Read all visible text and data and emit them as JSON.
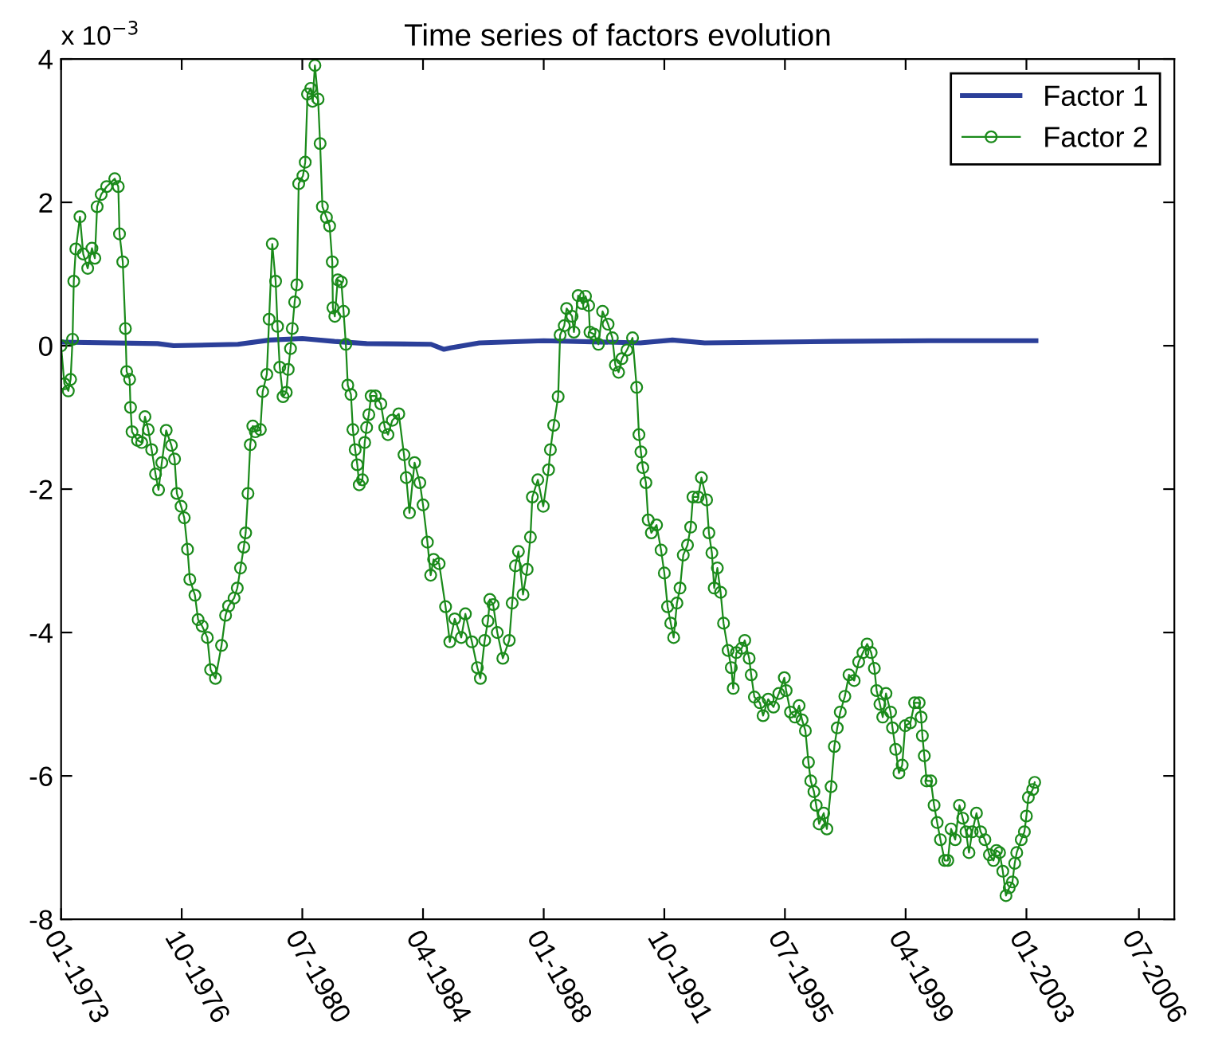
{
  "chart_data": {
    "type": "line",
    "title": "Time series of factors evolution",
    "annotations": [
      "x 10$^{−3}$"
    ],
    "xlim": [
      "1973-01-01",
      "2007-08-07"
    ],
    "ylim": [
      -8,
      4
    ],
    "xticks": [
      {
        "value": "1973-01",
        "label": "01-1973"
      },
      {
        "value": "1976-10",
        "label": "10-1976"
      },
      {
        "value": "1980-07",
        "label": "07-1980"
      },
      {
        "value": "1984-04",
        "label": "04-1984"
      },
      {
        "value": "1988-01",
        "label": "01-1988"
      },
      {
        "value": "1991-10",
        "label": "10-1991"
      },
      {
        "value": "1995-07",
        "label": "07-1995"
      },
      {
        "value": "1999-04",
        "label": "04-1999"
      },
      {
        "value": "2003-01",
        "label": "01-2003"
      },
      {
        "value": "2006-07",
        "label": "07-2006"
      }
    ],
    "yticks": [
      -8,
      -6,
      -4,
      -2,
      0,
      2,
      4
    ],
    "grid": false,
    "legend": "top right",
    "series": [
      {
        "name": "Factor 1",
        "color": "#2b3f99",
        "marker": "none",
        "x": [
          "1973-01-01",
          "1976-01-01",
          "1976-07-01",
          "1978-07-01",
          "1979-07-01",
          "1980-07-01",
          "1981-07-01",
          "1982-07-01",
          "1984-07-01",
          "1984-11-25",
          "1985-02-07",
          "1986-01-01",
          "1988-01-01",
          "1991-01-01",
          "1992-01-01",
          "1993-01-01",
          "1997-01-01",
          "2000-01-01",
          "2003-04-19"
        ],
        "values": [
          0.05,
          0.03,
          0.0,
          0.02,
          0.08,
          0.1,
          0.06,
          0.03,
          0.02,
          -0.05,
          -0.03,
          0.04,
          0.07,
          0.04,
          0.08,
          0.04,
          0.06,
          0.07,
          0.07
        ]
      },
      {
        "name": "Factor 2",
        "color": "#1a8a1a",
        "marker": "circle",
        "x": [
          "1973-01-01",
          "1973-02-07",
          "1973-03-24",
          "1973-04-19",
          "1973-05-11",
          "1973-05-25",
          "1973-06-17",
          "1973-08-03",
          "1973-09-09",
          "1973-10-30",
          "1973-12-17",
          "1974-01-19",
          "1974-02-14",
          "1974-04-01",
          "1974-06-02",
          "1974-09-02",
          "1974-10-12",
          "1974-10-26",
          "1974-12-02",
          "1975-01-01",
          "1975-01-15",
          "1975-02-18",
          "1975-02-28",
          "1975-03-17",
          "1975-05-18",
          "1975-07-05",
          "1975-08-11",
          "1975-09-17",
          "1975-10-26",
          "1975-12-09",
          "1976-01-12",
          "1976-02-18",
          "1976-04-08",
          "1976-06-06",
          "1976-07-12",
          "1976-08-07",
          "1976-09-24",
          "1976-10-30",
          "1976-12-06",
          "1977-01-01",
          "1977-02-28",
          "1977-04-05",
          "1977-05-21",
          "1977-07-19",
          "1977-08-25",
          "1977-10-19",
          "1977-12-27",
          "1978-02-11",
          "1978-03-17",
          "1978-05-18",
          "1978-06-24",
          "1978-07-30",
          "1978-09-06",
          "1978-09-27",
          "1978-10-23",
          "1978-11-18",
          "1978-12-17",
          "1979-01-15",
          "1979-03-13",
          "1979-04-08",
          "1979-05-25",
          "1979-06-20",
          "1979-07-26",
          "1979-09-02",
          "1979-09-24",
          "1979-10-19",
          "1979-11-25",
          "1980-01-01",
          "1980-01-23",
          "1980-02-18",
          "1980-03-09",
          "1980-04-05",
          "1980-04-30",
          "1980-05-21",
          "1980-07-08",
          "1980-08-03",
          "1980-08-29",
          "1980-10-05",
          "1980-10-26",
          "1980-11-21",
          "1980-12-27",
          "1981-01-19",
          "1981-02-14",
          "1981-04-01",
          "1981-05-07",
          "1981-06-06",
          "1981-06-13",
          "1981-07-05",
          "1981-08-07",
          "1981-09-17",
          "1981-10-12",
          "1981-11-07",
          "1981-11-29",
          "1982-01-04",
          "1982-01-26",
          "1982-02-21",
          "1982-03-17",
          "1982-04-08",
          "1982-05-14",
          "1982-06-09",
          "1982-07-01",
          "1982-07-26",
          "1982-08-21",
          "1982-10-08",
          "1982-12-09",
          "1983-01-23",
          "1983-02-28",
          "1983-04-19",
          "1983-07-01",
          "1983-08-29",
          "1983-09-24",
          "1983-10-30",
          "1983-12-27",
          "1984-02-25",
          "1984-04-01",
          "1984-05-21",
          "1984-06-27",
          "1984-07-30",
          "1984-10-01",
          "1984-12-13",
          "1985-01-30",
          "1985-03-27",
          "1985-06-09",
          "1985-07-26",
          "1985-10-08",
          "1985-12-09",
          "1986-01-12",
          "1986-03-02",
          "1986-04-08",
          "1986-04-30",
          "1986-06-06",
          "1986-07-23",
          "1986-09-24",
          "1986-12-06",
          "1987-01-08",
          "1987-02-14",
          "1987-03-20",
          "1987-05-11",
          "1987-06-27",
          "1987-08-03",
          "1987-08-25",
          "1987-10-26",
          "1987-12-27",
          "1988-02-25",
          "1988-03-17",
          "1988-04-23",
          "1988-06-13",
          "1988-07-05",
          "1988-08-21",
          "1988-09-17",
          "1988-11-18",
          "1988-12-09",
          "1989-01-26",
          "1989-03-13",
          "1989-04-19",
          "1989-05-25",
          "1989-06-09",
          "1989-07-26",
          "1989-09-13",
          "1989-10-30",
          "1990-01-01",
          "1990-02-18",
          "1990-03-24",
          "1990-04-30",
          "1990-06-06",
          "1990-08-03",
          "1990-10-05",
          "1990-11-21",
          "1990-12-17",
          "1991-01-08",
          "1991-01-30",
          "1991-03-06",
          "1991-04-01",
          "1991-05-07",
          "1991-07-05",
          "1991-08-25",
          "1991-10-01",
          "1991-11-07",
          "1991-12-13",
          "1992-01-15",
          "1992-02-21",
          "1992-03-27",
          "1992-05-03",
          "1992-06-20",
          "1992-07-26",
          "1992-08-21",
          "1992-10-19",
          "1992-11-25",
          "1993-01-23",
          "1993-02-18",
          "1993-03-24",
          "1993-04-19",
          "1993-05-25",
          "1993-07-01",
          "1993-08-03",
          "1993-09-24",
          "1993-10-30",
          "1993-11-21",
          "1993-12-27",
          "1994-02-25",
          "1994-04-01",
          "1994-05-21",
          "1994-06-13",
          "1994-07-19",
          "1994-09-20",
          "1994-10-26",
          "1994-12-23",
          "1995-02-21",
          "1995-04-23",
          "1995-06-24",
          "1995-07-15",
          "1995-09-02",
          "1995-10-23",
          "1995-12-09",
          "1996-01-12",
          "1996-02-18",
          "1996-03-24",
          "1996-04-19",
          "1996-05-25",
          "1996-06-20",
          "1996-07-23",
          "1996-09-13",
          "1996-10-19",
          "1996-12-06",
          "1997-01-12",
          "1997-02-14",
          "1997-03-20",
          "1997-05-11",
          "1997-06-27",
          "1997-08-25",
          "1997-10-15",
          "1997-12-02",
          "1998-01-19",
          "1998-03-06",
          "1998-04-11",
          "1998-05-07",
          "1998-06-13",
          "1998-07-15",
          "1998-08-21",
          "1998-10-12",
          "1998-11-03",
          "1998-12-09",
          "1999-01-15",
          "1999-02-21",
          "1999-03-27",
          "1999-05-25",
          "1999-07-12",
          "1999-09-02",
          "1999-09-24",
          "1999-10-08",
          "1999-10-30",
          "1999-11-25",
          "2000-01-12",
          "2000-02-18",
          "2000-03-24",
          "2000-04-30",
          "2000-06-17",
          "2000-07-23",
          "2000-08-29",
          "2000-10-15",
          "2000-12-02",
          "2001-01-08",
          "2001-02-14",
          "2001-03-20",
          "2001-04-26",
          "2001-06-13",
          "2001-07-30",
          "2001-09-17",
          "2001-11-07",
          "2001-12-23",
          "2002-01-26",
          "2002-03-02",
          "2002-04-08",
          "2002-05-14",
          "2002-06-20",
          "2002-07-26",
          "2002-08-21",
          "2002-09-13",
          "2002-11-03",
          "2002-12-09",
          "2003-01-01",
          "2003-01-23",
          "2003-03-13",
          "2003-04-05"
        ],
        "values": [
          0.0,
          -0.53,
          -0.63,
          -0.47,
          0.09,
          0.9,
          1.35,
          1.8,
          1.28,
          1.08,
          1.36,
          1.22,
          1.94,
          2.11,
          2.22,
          2.33,
          2.22,
          1.56,
          1.17,
          0.24,
          -0.36,
          -0.47,
          -0.86,
          -1.2,
          -1.32,
          -1.35,
          -0.99,
          -1.17,
          -1.45,
          -1.79,
          -2.01,
          -1.63,
          -1.18,
          -1.39,
          -1.58,
          -2.06,
          -2.24,
          -2.4,
          -2.84,
          -3.26,
          -3.48,
          -3.82,
          -3.91,
          -4.07,
          -4.52,
          -4.64,
          -4.18,
          -3.76,
          -3.63,
          -3.52,
          -3.38,
          -3.1,
          -2.81,
          -2.61,
          -2.06,
          -1.38,
          -1.12,
          -1.2,
          -1.17,
          -0.64,
          -0.4,
          0.37,
          1.42,
          0.9,
          0.27,
          -0.3,
          -0.71,
          -0.65,
          -0.33,
          -0.04,
          0.24,
          0.61,
          0.85,
          2.26,
          2.37,
          2.56,
          3.51,
          3.59,
          3.41,
          3.91,
          3.44,
          2.82,
          1.94,
          1.79,
          1.67,
          1.17,
          0.53,
          0.41,
          0.92,
          0.89,
          0.48,
          0.02,
          -0.55,
          -0.68,
          -1.17,
          -1.45,
          -1.66,
          -1.94,
          -1.87,
          -1.35,
          -1.14,
          -0.96,
          -0.7,
          -0.7,
          -0.81,
          -1.14,
          -1.24,
          -1.04,
          -0.95,
          -1.52,
          -1.84,
          -2.33,
          -1.63,
          -1.91,
          -2.22,
          -2.74,
          -3.2,
          -2.98,
          -3.04,
          -3.64,
          -4.13,
          -3.81,
          -4.07,
          -3.74,
          -4.13,
          -4.49,
          -4.64,
          -4.11,
          -3.84,
          -3.54,
          -3.61,
          -4.0,
          -4.36,
          -4.11,
          -3.59,
          -3.07,
          -2.87,
          -3.47,
          -3.12,
          -2.67,
          -2.11,
          -1.87,
          -2.24,
          -1.73,
          -1.45,
          -1.11,
          -0.71,
          0.15,
          0.28,
          0.52,
          0.41,
          0.19,
          0.7,
          0.59,
          0.69,
          0.56,
          0.19,
          0.16,
          0.02,
          0.48,
          0.3,
          0.11,
          -0.27,
          -0.37,
          -0.18,
          -0.06,
          0.11,
          -0.58,
          -1.24,
          -1.48,
          -1.7,
          -1.91,
          -2.43,
          -2.61,
          -2.5,
          -2.85,
          -3.17,
          -3.64,
          -3.87,
          -4.07,
          -3.59,
          -3.38,
          -2.92,
          -2.78,
          -2.53,
          -2.11,
          -2.11,
          -1.84,
          -2.15,
          -2.61,
          -2.89,
          -3.38,
          -3.1,
          -3.44,
          -3.87,
          -4.25,
          -4.49,
          -4.78,
          -4.28,
          -4.22,
          -4.11,
          -4.36,
          -4.59,
          -4.9,
          -4.98,
          -5.16,
          -4.93,
          -5.04,
          -4.85,
          -4.63,
          -4.81,
          -5.11,
          -5.18,
          -5.02,
          -5.22,
          -5.37,
          -5.81,
          -6.07,
          -6.22,
          -6.41,
          -6.67,
          -6.52,
          -6.74,
          -6.15,
          -5.59,
          -5.33,
          -5.11,
          -4.89,
          -4.59,
          -4.67,
          -4.41,
          -4.28,
          -4.16,
          -4.28,
          -4.5,
          -4.81,
          -5.0,
          -5.18,
          -4.85,
          -5.11,
          -5.33,
          -5.63,
          -5.96,
          -5.85,
          -5.3,
          -5.26,
          -4.98,
          -4.98,
          -5.18,
          -5.44,
          -5.72,
          -6.07,
          -6.07,
          -6.41,
          -6.65,
          -6.89,
          -7.18,
          -7.18,
          -6.74,
          -6.89,
          -6.41,
          -6.59,
          -6.78,
          -7.07,
          -6.78,
          -6.52,
          -6.78,
          -6.89,
          -7.1,
          -7.18,
          -7.04,
          -7.07,
          -7.33,
          -7.67,
          -7.56,
          -7.48,
          -7.22,
          -7.07,
          -6.89,
          -6.78,
          -6.56,
          -6.3,
          -6.19,
          -6.09
        ]
      }
    ]
  }
}
